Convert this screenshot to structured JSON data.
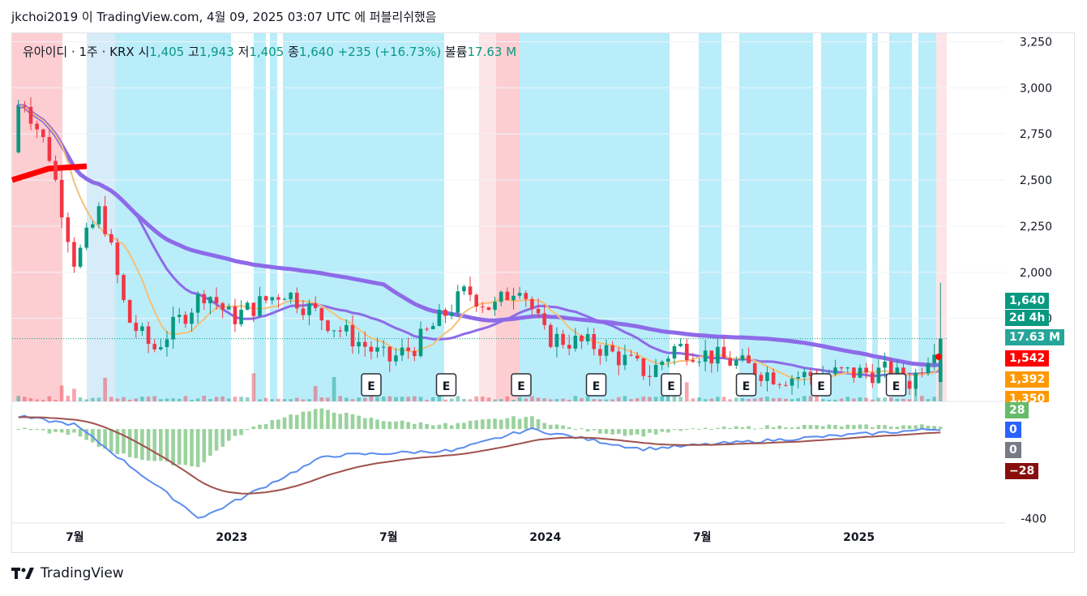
{
  "header": {
    "text": "jkchoi2019 이 TradingView.com, 4월 09, 2025 03:07 UTC 에 퍼블리쉬했음"
  },
  "legend": {
    "symbol": "유아이디 · 1주 · KRX",
    "open_label": "시",
    "open": "1,405",
    "high_label": "고",
    "high": "1,943",
    "low_label": "저",
    "low": "1,405",
    "close_label": "종",
    "close": "1,640",
    "change": "+235 (+16.73%)",
    "volume_label": "볼륨",
    "volume": "17.63 M"
  },
  "price_axis": {
    "ticks": [
      "3,250",
      "3,000",
      "2,750",
      "2,500",
      "2,250",
      "2,000",
      "1,750"
    ]
  },
  "macd_axis": {
    "ticks": [
      "-400"
    ]
  },
  "time_axis": {
    "labels": [
      "7월",
      "2023",
      "7월",
      "2024",
      "7월",
      "2025"
    ]
  },
  "price_tags": [
    {
      "label": "1,640",
      "color": "#089981"
    },
    {
      "label": "2d 4h",
      "color": "#089981"
    },
    {
      "label": "17.63 M",
      "color": "#26a69a"
    },
    {
      "label": "1,542",
      "color": "#ff0000"
    },
    {
      "label": "1,392",
      "color": "#ff9800"
    },
    {
      "label": "1,350",
      "color": "#ff9800"
    }
  ],
  "macd_tags": [
    {
      "label": "28",
      "color": "#66bb6a"
    },
    {
      "label": "0",
      "color": "#2962ff"
    },
    {
      "label": "0",
      "color": "#787b86"
    },
    {
      "label": "−28",
      "color": "#880e0e"
    }
  ],
  "earnings_marker": "E",
  "footer": {
    "brand": "TradingView"
  },
  "colors": {
    "up": "#089981",
    "down": "#f23645",
    "ma_purple": "#8d6be8",
    "ma_yellow": "#f5c076",
    "bg_blue": "#b2ebf9",
    "bg_red": "#fcc9cd",
    "macd_line": "#5b8def",
    "signal_line": "#a0524d"
  },
  "chart_data": {
    "type": "candlestick",
    "interval": "1 week",
    "price_ylim": [
      1300,
      3300
    ],
    "macd_ylim": [
      -420,
      120
    ],
    "last": {
      "open": 1405,
      "high": 1943,
      "low": 1405,
      "close": 1640,
      "volume_millions": 17.63
    },
    "approx_close_path": [
      {
        "date": "2022-04",
        "close": 2650
      },
      {
        "date": "2022-05",
        "close": 2950
      },
      {
        "date": "2022-06",
        "close": 2650
      },
      {
        "date": "2022-07",
        "close": 2050
      },
      {
        "date": "2022-08",
        "close": 2350
      },
      {
        "date": "2022-09",
        "close": 1750
      },
      {
        "date": "2022-10",
        "close": 1580
      },
      {
        "date": "2022-12",
        "close": 1900
      },
      {
        "date": "2023-01",
        "close": 1750
      },
      {
        "date": "2023-03",
        "close": 1900
      },
      {
        "date": "2023-05",
        "close": 1700
      },
      {
        "date": "2023-07",
        "close": 1520
      },
      {
        "date": "2023-08",
        "close": 1600
      },
      {
        "date": "2023-10",
        "close": 1900
      },
      {
        "date": "2023-11",
        "close": 1800
      },
      {
        "date": "2023-12",
        "close": 1950
      },
      {
        "date": "2024-01",
        "close": 1650
      },
      {
        "date": "2024-03",
        "close": 1600
      },
      {
        "date": "2024-05",
        "close": 1450
      },
      {
        "date": "2024-06",
        "close": 1600
      },
      {
        "date": "2024-08",
        "close": 1520
      },
      {
        "date": "2024-10",
        "close": 1430
      },
      {
        "date": "2024-12",
        "close": 1450
      },
      {
        "date": "2025-02",
        "close": 1460
      },
      {
        "date": "2025-03",
        "close": 1405
      },
      {
        "date": "2025-04",
        "close": 1640
      }
    ],
    "earnings_count": 8,
    "macd_indicator": {
      "histogram": 28,
      "macd": 0,
      "signal": -28
    }
  }
}
